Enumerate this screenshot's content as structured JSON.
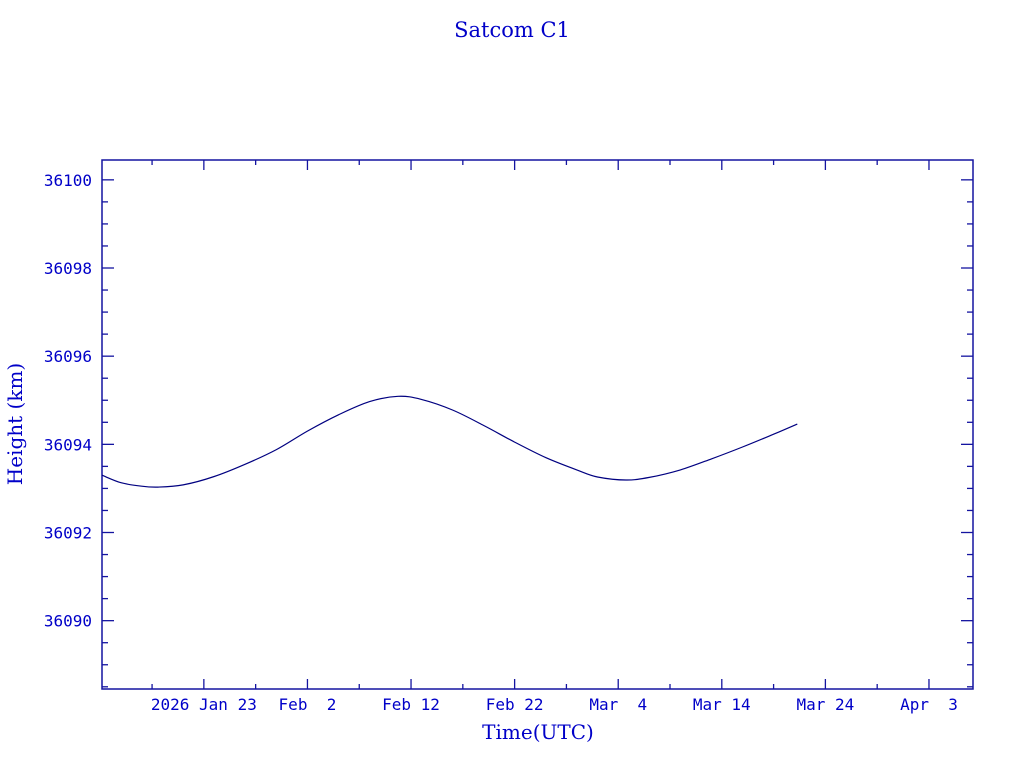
{
  "chart_data": {
    "type": "line",
    "title": "Satcom C1",
    "xlabel": "Time(UTC)",
    "ylabel": "Height (km)",
    "x_ticks": [
      {
        "date": "2026-01-23",
        "label": "2026 Jan 23"
      },
      {
        "date": "2026-02-02",
        "label": "Feb  2"
      },
      {
        "date": "2026-02-12",
        "label": "Feb 12"
      },
      {
        "date": "2026-02-22",
        "label": "Feb 22"
      },
      {
        "date": "2026-03-04",
        "label": "Mar  4"
      },
      {
        "date": "2026-03-14",
        "label": "Mar 14"
      },
      {
        "date": "2026-03-24",
        "label": "Mar 24"
      },
      {
        "date": "2026-04-03",
        "label": "Apr  3"
      }
    ],
    "y_ticks": [
      36090,
      36092,
      36094,
      36096,
      36098,
      36100
    ],
    "xlim": [
      "2026-01-13T04:00",
      "2026-04-07T06:00"
    ],
    "ylim": [
      36088.45,
      36100.45
    ],
    "grid": false,
    "series": [
      {
        "x": [
          "2026-01-13T04:00",
          "2026-01-15",
          "2026-01-17",
          "2026-01-18T14:00",
          "2026-01-21",
          "2026-01-24",
          "2026-01-27",
          "2026-01-30",
          "2026-02-02",
          "2026-02-05",
          "2026-02-08",
          "2026-02-10T18:00",
          "2026-02-13",
          "2026-02-16",
          "2026-02-19",
          "2026-02-22",
          "2026-02-25",
          "2026-02-28",
          "2026-03-02",
          "2026-03-04T18:00",
          "2026-03-07",
          "2026-03-10",
          "2026-03-13",
          "2026-03-16",
          "2026-03-19",
          "2026-03-21T07:00"
        ],
        "y": [
          36093.3,
          36093.13,
          36093.05,
          36093.03,
          36093.08,
          36093.27,
          36093.55,
          36093.88,
          36094.3,
          36094.67,
          36094.97,
          36095.09,
          36095.02,
          36094.78,
          36094.43,
          36094.05,
          36093.7,
          36093.42,
          36093.26,
          36093.19,
          36093.25,
          36093.42,
          36093.67,
          36093.94,
          36094.23,
          36094.46
        ]
      }
    ],
    "colors": {
      "axes": "#1414a0",
      "text": "#0000c8",
      "line": "#000080"
    }
  }
}
